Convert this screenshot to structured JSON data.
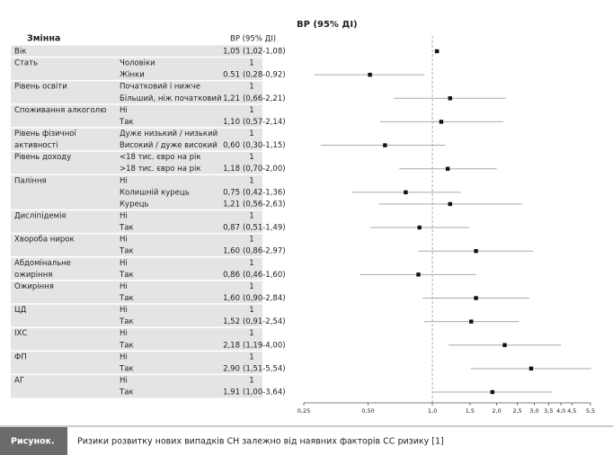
{
  "chart_data": {
    "type": "forest",
    "title": "ВР (95% ДІ)",
    "column_headers": [
      "Змінна",
      "ВР (95% ДІ)"
    ],
    "log_scale": true,
    "xlim": [
      0.25,
      5.5
    ],
    "reference_line": 1,
    "xticks": [
      {
        "value": 0.25,
        "label": "0,25"
      },
      {
        "value": 0.5,
        "label": "0,50"
      },
      {
        "value": 1,
        "label": "1,0"
      },
      {
        "value": 1.5,
        "label": "1,5"
      },
      {
        "value": 2,
        "label": "2,0"
      },
      {
        "value": 2.5,
        "label": "2,5"
      },
      {
        "value": 3,
        "label": "3,0"
      },
      {
        "value": 3.5,
        "label": "3,5"
      },
      {
        "value": 4,
        "label": "4,0"
      },
      {
        "value": 4.5,
        "label": "4,5"
      },
      {
        "value": 5.5,
        "label": "5,5"
      }
    ],
    "marker_color": "#111111",
    "ci_color": "#aaaaaa",
    "groups": [
      {
        "name": [
          "Вік"
        ],
        "rows": [
          {
            "value": 1.05,
            "low": 1.02,
            "high": 1.08,
            "value_label": "1,05",
            "ci_label": "(1,02-1,08)"
          }
        ]
      },
      {
        "name": [
          "Стать"
        ],
        "rows": [
          {
            "level": "Чоловіки",
            "value_label": "1"
          },
          {
            "level": "Жінки",
            "value": 0.51,
            "low": 0.28,
            "high": 0.92,
            "value_label": "0.51",
            "ci_label": "(0,28-0,92)"
          }
        ]
      },
      {
        "name": [
          "Рівень освіти"
        ],
        "rows": [
          {
            "level": "Початковий і нижче",
            "value_label": "1"
          },
          {
            "level": "Більший, ніж початковий",
            "value": 1.21,
            "low": 0.66,
            "high": 2.21,
            "value_label": "1,21",
            "ci_label": "(0,66-2,21)"
          }
        ]
      },
      {
        "name": [
          "Споживання алкоголю"
        ],
        "rows": [
          {
            "level": "Ні",
            "value_label": "1"
          },
          {
            "level": "Так",
            "value": 1.1,
            "low": 0.57,
            "high": 2.14,
            "value_label": "1,10",
            "ci_label": "(0,57-2,14)"
          }
        ]
      },
      {
        "name": [
          "Рівень фізичної",
          "активності"
        ],
        "rows": [
          {
            "level": "Дуже низький / низький",
            "value_label": "1"
          },
          {
            "level": "Високий / дуже високий",
            "value": 0.6,
            "low": 0.3,
            "high": 1.15,
            "value_label": "0,60",
            "ci_label": "(0,30-1,15)"
          }
        ]
      },
      {
        "name": [
          "Рівень доходу"
        ],
        "rows": [
          {
            "level": "<18 тис. євро на рік",
            "value_label": "1"
          },
          {
            "level": ">18 тис. євро на рік",
            "value": 1.18,
            "low": 0.7,
            "high": 2.0,
            "value_label": "1,18",
            "ci_label": "(0,70-2,00)"
          }
        ]
      },
      {
        "name": [
          "Паління"
        ],
        "rows": [
          {
            "level": "Ні",
            "value_label": "1"
          },
          {
            "level": "Колишній курець",
            "value": 0.75,
            "low": 0.42,
            "high": 1.36,
            "value_label": "0,75",
            "ci_label": "(0,42-1,36)"
          },
          {
            "level": "Курець",
            "value": 1.21,
            "low": 0.56,
            "high": 2.63,
            "value_label": "1,21",
            "ci_label": "(0,56-2,63)"
          }
        ]
      },
      {
        "name": [
          "Дисліпідемія"
        ],
        "rows": [
          {
            "level": "Ні",
            "value_label": "1"
          },
          {
            "level": "Так",
            "value": 0.87,
            "low": 0.51,
            "high": 1.49,
            "value_label": "0,87",
            "ci_label": "(0,51-1,49)"
          }
        ]
      },
      {
        "name": [
          "Хвороба нирок"
        ],
        "rows": [
          {
            "level": "Ні",
            "value_label": "1"
          },
          {
            "level": "Так",
            "value": 1.6,
            "low": 0.86,
            "high": 2.97,
            "value_label": "1,60",
            "ci_label": "(0,86-2,97)"
          }
        ]
      },
      {
        "name": [
          "Абдомінальне",
          "ожиріння"
        ],
        "rows": [
          {
            "level": "Ні",
            "value_label": "1"
          },
          {
            "level": "Так",
            "value": 0.86,
            "low": 0.46,
            "high": 1.6,
            "value_label": "0,86",
            "ci_label": "(0,46-1,60)"
          }
        ]
      },
      {
        "name": [
          "Ожиріння"
        ],
        "rows": [
          {
            "level": "Ні",
            "value_label": "1"
          },
          {
            "level": "Так",
            "value": 1.6,
            "low": 0.9,
            "high": 2.84,
            "value_label": "1,60",
            "ci_label": "(0,90-2,84)"
          }
        ]
      },
      {
        "name": [
          "ЦД"
        ],
        "rows": [
          {
            "level": "Ні",
            "value_label": "1"
          },
          {
            "level": "Так",
            "value": 1.52,
            "low": 0.91,
            "high": 2.54,
            "value_label": "1,52",
            "ci_label": "(0,91-2,54)"
          }
        ]
      },
      {
        "name": [
          "ІХС"
        ],
        "rows": [
          {
            "level": "Ні",
            "value_label": "1"
          },
          {
            "level": "Так",
            "value": 2.18,
            "low": 1.19,
            "high": 4.0,
            "value_label": "2,18",
            "ci_label": "(1,19-4,00)"
          }
        ]
      },
      {
        "name": [
          "ФП"
        ],
        "rows": [
          {
            "level": "Ні",
            "value_label": "1"
          },
          {
            "level": "Так",
            "value": 2.9,
            "low": 1.51,
            "high": 5.54,
            "value_label": "2,90",
            "ci_label": "(1,51-5,54)"
          }
        ]
      },
      {
        "name": [
          "АГ"
        ],
        "rows": [
          {
            "level": "Ні",
            "value_label": "1"
          },
          {
            "level": "Так",
            "value": 1.91,
            "low": 1.0,
            "high": 3.64,
            "value_label": "1,91",
            "ci_label": "(1,00-3,64)"
          }
        ]
      }
    ]
  },
  "caption": {
    "label": "Рисунок.",
    "text": "Ризики розвитку нових випадків СН залежно від наявних факторів СС ризику [1]"
  }
}
